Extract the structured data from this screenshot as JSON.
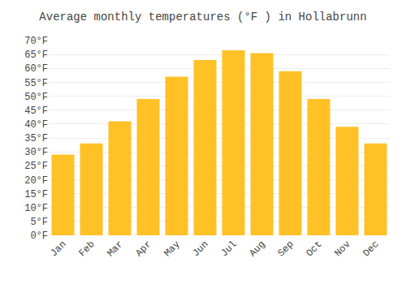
{
  "chart_data": {
    "type": "bar",
    "title": "Average monthly temperatures (°F ) in Hollabrunn",
    "categories": [
      "Jan",
      "Feb",
      "Mar",
      "Apr",
      "May",
      "Jun",
      "Jul",
      "Aug",
      "Sep",
      "Oct",
      "Nov",
      "Dec"
    ],
    "values": [
      29,
      33,
      41,
      49,
      57,
      63,
      66.5,
      65.5,
      59,
      49,
      39,
      33
    ],
    "color": "#FFC125",
    "ylim": [
      0,
      70
    ],
    "yticks": [
      {
        "value": 0,
        "label": "0°F"
      },
      {
        "value": 5,
        "label": "5°F"
      },
      {
        "value": 10,
        "label": "10°F"
      },
      {
        "value": 15,
        "label": "15°F"
      },
      {
        "value": 20,
        "label": "20°F"
      },
      {
        "value": 25,
        "label": "25°F"
      },
      {
        "value": 30,
        "label": "30°F"
      },
      {
        "value": 35,
        "label": "35°F"
      },
      {
        "value": 40,
        "label": "40°F"
      },
      {
        "value": 45,
        "label": "45°F"
      },
      {
        "value": 50,
        "label": "50°F"
      },
      {
        "value": 55,
        "label": "55°F"
      },
      {
        "value": 60,
        "label": "60°F"
      },
      {
        "value": 65,
        "label": "65°F"
      },
      {
        "value": 70,
        "label": "70°F"
      }
    ],
    "grid": true
  }
}
